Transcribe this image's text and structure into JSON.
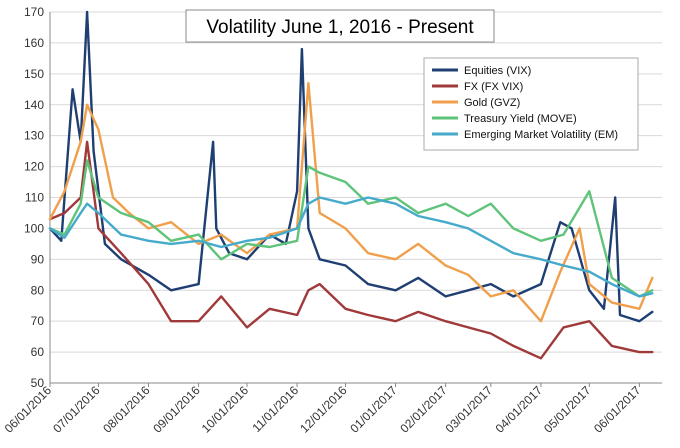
{
  "chart_data": {
    "type": "line",
    "title": "Volatility June 1, 2016 - Present",
    "xlabel": "",
    "ylabel": "",
    "ylim": [
      50,
      170
    ],
    "yticks": [
      50,
      60,
      70,
      80,
      90,
      100,
      110,
      120,
      130,
      140,
      150,
      160,
      170
    ],
    "xticks": [
      "06/01/2016",
      "07/01/2016",
      "08/01/2016",
      "09/01/2016",
      "10/01/2016",
      "11/01/2016",
      "12/01/2016",
      "01/01/2017",
      "02/01/2017",
      "03/01/2017",
      "04/01/2017",
      "05/01/2017",
      "06/01/2017"
    ],
    "xrange": [
      "06/01/2016",
      "06/15/2017"
    ],
    "grid": "horizontal",
    "legend_position": "top-right",
    "series": [
      {
        "name": "Equities (VIX)",
        "color": "#1f3f73",
        "x": [
          "2016-06-01",
          "2016-06-08",
          "2016-06-15",
          "2016-06-20",
          "2016-06-24",
          "2016-06-28",
          "2016-07-05",
          "2016-07-15",
          "2016-08-01",
          "2016-08-15",
          "2016-09-01",
          "2016-09-10",
          "2016-09-12",
          "2016-09-20",
          "2016-10-01",
          "2016-10-15",
          "2016-10-25",
          "2016-11-01",
          "2016-11-04",
          "2016-11-08",
          "2016-11-15",
          "2016-12-01",
          "2016-12-15",
          "2017-01-01",
          "2017-01-15",
          "2017-02-01",
          "2017-02-15",
          "2017-03-01",
          "2017-03-15",
          "2017-04-01",
          "2017-04-13",
          "2017-04-20",
          "2017-05-01",
          "2017-05-10",
          "2017-05-17",
          "2017-05-20",
          "2017-06-01",
          "2017-06-09"
        ],
        "values": [
          100,
          96,
          145,
          128,
          170,
          125,
          95,
          90,
          85,
          80,
          82,
          128,
          100,
          92,
          90,
          98,
          95,
          112,
          158,
          100,
          90,
          88,
          82,
          80,
          84,
          78,
          80,
          82,
          78,
          82,
          102,
          100,
          80,
          74,
          110,
          72,
          70,
          73
        ]
      },
      {
        "name": "FX (FX VIX)",
        "color": "#a0393a",
        "x": [
          "2016-06-01",
          "2016-06-10",
          "2016-06-20",
          "2016-06-24",
          "2016-07-01",
          "2016-07-15",
          "2016-08-01",
          "2016-08-15",
          "2016-09-01",
          "2016-09-15",
          "2016-10-01",
          "2016-10-15",
          "2016-11-01",
          "2016-11-08",
          "2016-11-15",
          "2016-12-01",
          "2016-12-15",
          "2017-01-01",
          "2017-01-15",
          "2017-02-01",
          "2017-02-15",
          "2017-03-01",
          "2017-03-15",
          "2017-04-01",
          "2017-04-15",
          "2017-05-01",
          "2017-05-15",
          "2017-06-01",
          "2017-06-09"
        ],
        "values": [
          103,
          105,
          110,
          128,
          100,
          92,
          82,
          70,
          70,
          78,
          68,
          74,
          72,
          80,
          82,
          74,
          72,
          70,
          73,
          70,
          68,
          66,
          62,
          58,
          68,
          70,
          62,
          60,
          60
        ]
      },
      {
        "name": "Gold (GVZ)",
        "color": "#f0a04c",
        "x": [
          "2016-06-01",
          "2016-06-10",
          "2016-06-20",
          "2016-06-24",
          "2016-07-01",
          "2016-07-10",
          "2016-07-20",
          "2016-08-01",
          "2016-08-15",
          "2016-09-01",
          "2016-09-15",
          "2016-10-01",
          "2016-10-15",
          "2016-11-01",
          "2016-11-08",
          "2016-11-15",
          "2016-12-01",
          "2016-12-15",
          "2017-01-01",
          "2017-01-15",
          "2017-02-01",
          "2017-02-15",
          "2017-03-01",
          "2017-03-15",
          "2017-04-01",
          "2017-04-13",
          "2017-04-25",
          "2017-05-01",
          "2017-05-15",
          "2017-06-01",
          "2017-06-09"
        ],
        "values": [
          103,
          112,
          128,
          140,
          132,
          110,
          105,
          100,
          102,
          95,
          98,
          92,
          98,
          100,
          147,
          105,
          100,
          92,
          90,
          95,
          88,
          85,
          78,
          80,
          70,
          86,
          100,
          82,
          76,
          74,
          84
        ]
      },
      {
        "name": "Treasury Yield (MOVE)",
        "color": "#5fc47a",
        "x": [
          "2016-06-01",
          "2016-06-10",
          "2016-06-20",
          "2016-06-24",
          "2016-07-01",
          "2016-07-15",
          "2016-08-01",
          "2016-08-15",
          "2016-09-01",
          "2016-09-15",
          "2016-10-01",
          "2016-10-15",
          "2016-11-01",
          "2016-11-08",
          "2016-11-15",
          "2016-12-01",
          "2016-12-15",
          "2017-01-01",
          "2017-01-15",
          "2017-02-01",
          "2017-02-15",
          "2017-03-01",
          "2017-03-15",
          "2017-04-01",
          "2017-04-15",
          "2017-05-01",
          "2017-05-15",
          "2017-06-01",
          "2017-06-09"
        ],
        "values": [
          100,
          98,
          108,
          122,
          110,
          105,
          102,
          96,
          98,
          90,
          95,
          94,
          96,
          120,
          118,
          115,
          108,
          110,
          105,
          108,
          104,
          108,
          100,
          96,
          98,
          112,
          84,
          78,
          80
        ]
      },
      {
        "name": "Emerging Market Volatility (EM)",
        "color": "#46aacb",
        "x": [
          "2016-06-01",
          "2016-06-10",
          "2016-06-20",
          "2016-06-24",
          "2016-07-01",
          "2016-07-15",
          "2016-08-01",
          "2016-08-15",
          "2016-09-01",
          "2016-09-15",
          "2016-10-01",
          "2016-10-15",
          "2016-11-01",
          "2016-11-08",
          "2016-11-15",
          "2016-12-01",
          "2016-12-15",
          "2017-01-01",
          "2017-01-15",
          "2017-02-01",
          "2017-02-15",
          "2017-03-01",
          "2017-03-15",
          "2017-04-01",
          "2017-04-15",
          "2017-05-01",
          "2017-05-15",
          "2017-06-01",
          "2017-06-09"
        ],
        "values": [
          100,
          97,
          105,
          108,
          105,
          98,
          96,
          95,
          96,
          94,
          96,
          97,
          100,
          108,
          110,
          108,
          110,
          108,
          104,
          102,
          100,
          96,
          92,
          90,
          88,
          86,
          82,
          78,
          79
        ]
      }
    ]
  }
}
